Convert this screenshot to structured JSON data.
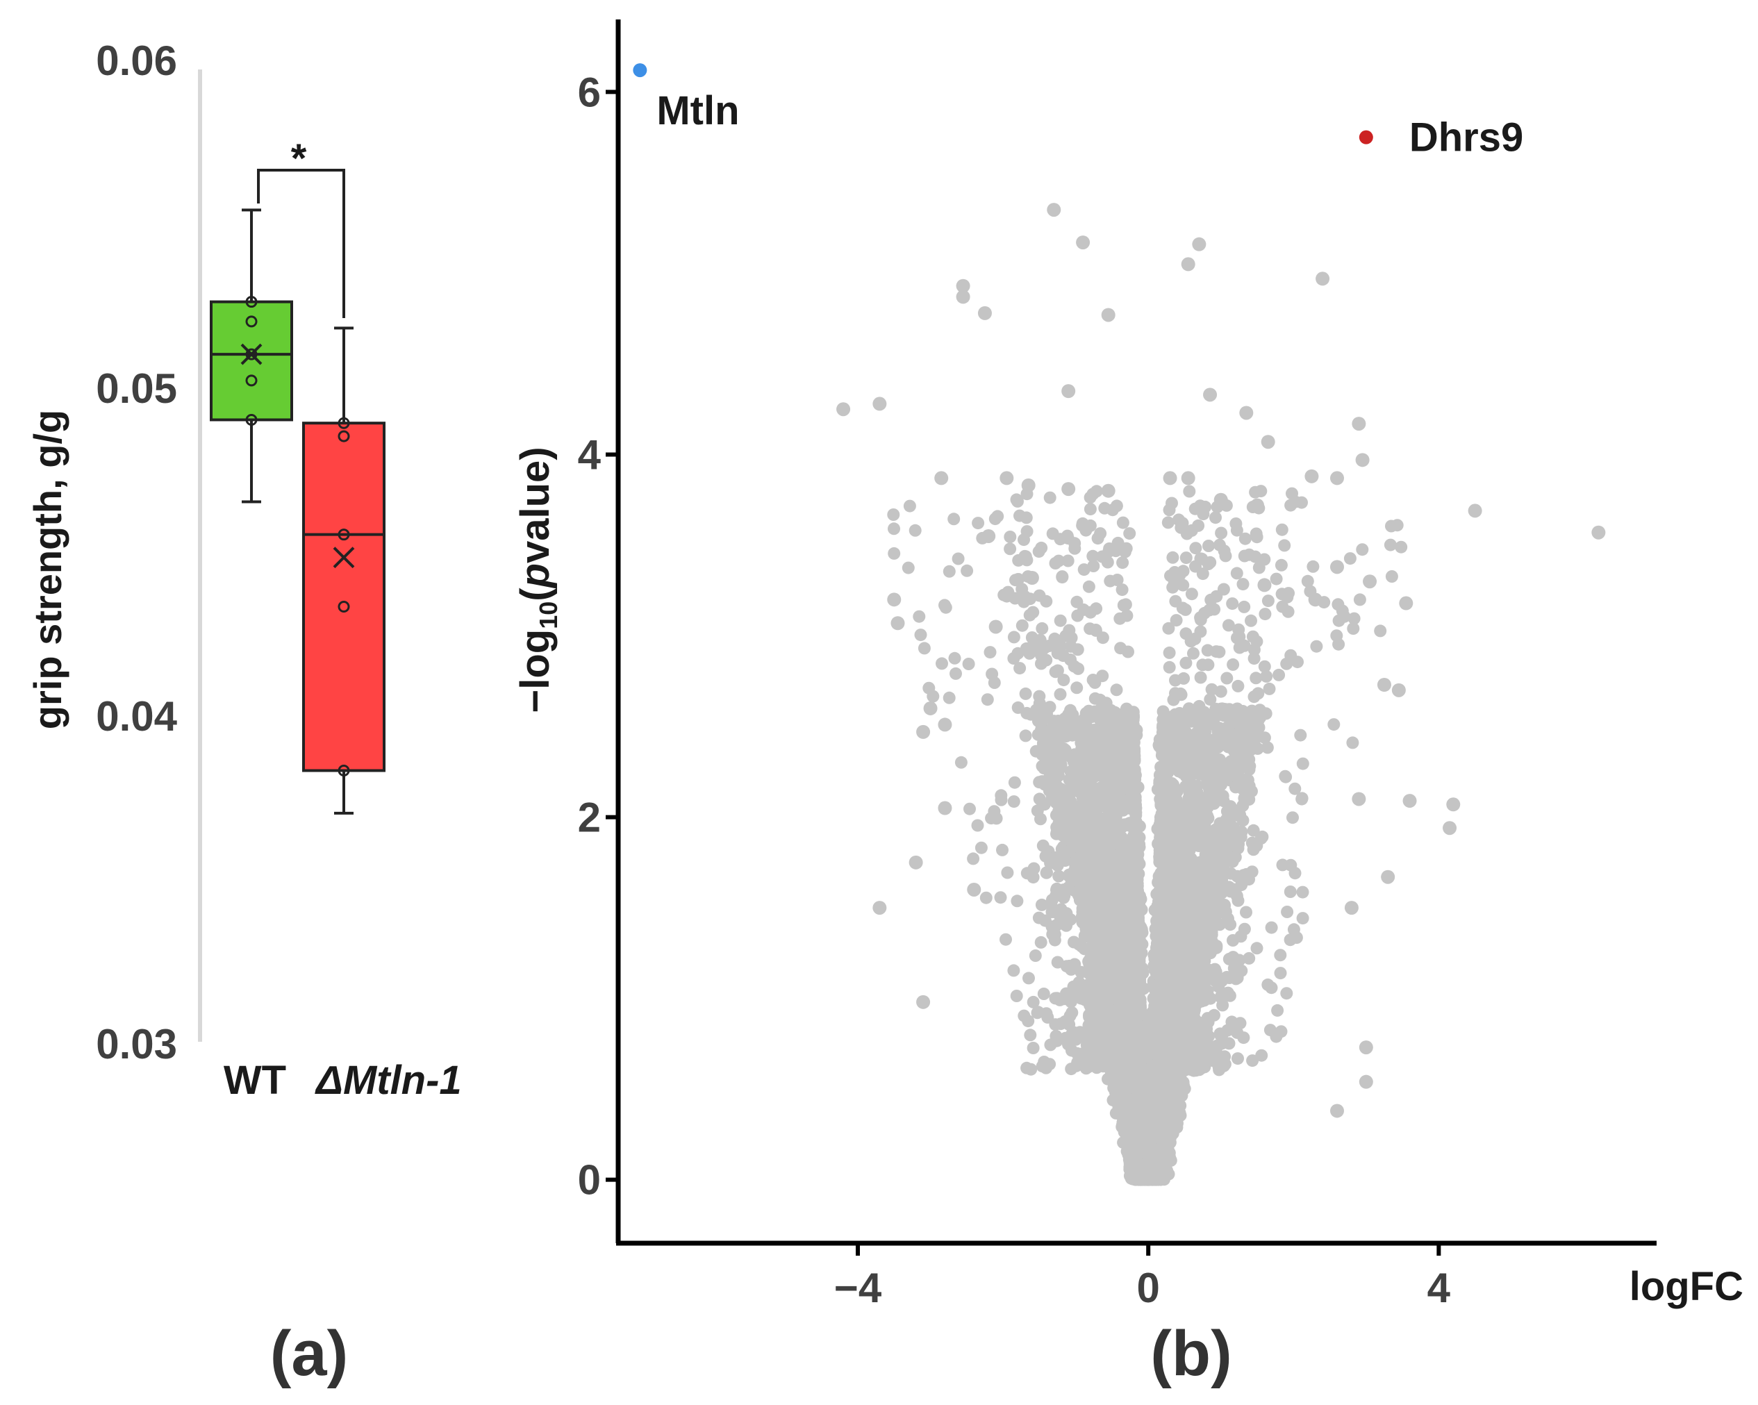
{
  "chart_data": [
    {
      "type": "box",
      "panel_label": "(a)",
      "ylabel": "grip strength, g/g",
      "ylim": [
        0.03,
        0.06
      ],
      "yticks": [
        "0.06",
        "0.05",
        "0.04",
        "0.03"
      ],
      "ytick_values": [
        0.06,
        0.05,
        0.04,
        0.03
      ],
      "categories": [
        "WT",
        "ΔMtln-1"
      ],
      "significance": "*",
      "boxes": [
        {
          "name": "WT",
          "whisker_low": 0.0466,
          "q1": 0.0491,
          "median": 0.0511,
          "q3": 0.0527,
          "whisker_high": 0.0555,
          "mean": 0.0511,
          "points": [
            0.0527,
            0.0521,
            0.0511,
            0.0503,
            0.0491
          ],
          "color": "#66cc33"
        },
        {
          "name": "ΔMtln-1",
          "whisker_low": 0.0371,
          "q1": 0.0384,
          "median": 0.0456,
          "q3": 0.049,
          "whisker_high": 0.0519,
          "mean": 0.0449,
          "points": [
            0.049,
            0.0486,
            0.0456,
            0.0434,
            0.0384
          ],
          "color": "#ff4444"
        }
      ]
    },
    {
      "type": "scatter",
      "panel_label": "(b)",
      "xlabel": "logFC",
      "ylabel_prefix": "−log",
      "ylabel_sub": "10",
      "ylabel_open": "(",
      "ylabel_italic": "p",
      "ylabel_rest": "value)",
      "xlim": [
        -7.3,
        7.0
      ],
      "ylim": [
        -0.35,
        6.4
      ],
      "xticks": [
        "−4",
        "0",
        "4"
      ],
      "xtick_values": [
        -4,
        0,
        4
      ],
      "yticks": [
        "0",
        "2",
        "4",
        "6"
      ],
      "ytick_values": [
        0,
        2,
        4,
        6
      ],
      "background_color": "#c4c4c4",
      "highlighted": [
        {
          "label": "Mtln",
          "x": -7.0,
          "y": 6.12,
          "color": "#3d8fe6"
        },
        {
          "label": "Dhrs9",
          "x": 3.0,
          "y": 5.75,
          "color": "#cc2222"
        }
      ],
      "outliers": [
        [
          -1.3,
          5.35
        ],
        [
          -0.9,
          5.17
        ],
        [
          0.7,
          5.16
        ],
        [
          0.55,
          5.05
        ],
        [
          2.4,
          4.97
        ],
        [
          -2.55,
          4.93
        ],
        [
          -2.55,
          4.87
        ],
        [
          -2.25,
          4.78
        ],
        [
          -0.55,
          4.77
        ],
        [
          -4.2,
          4.25
        ],
        [
          -3.7,
          4.28
        ],
        [
          -1.1,
          4.35
        ],
        [
          0.85,
          4.33
        ],
        [
          1.35,
          4.23
        ],
        [
          2.9,
          4.17
        ],
        [
          1.65,
          4.07
        ],
        [
          2.95,
          3.97
        ],
        [
          2.6,
          3.87
        ],
        [
          2.25,
          3.88
        ],
        [
          -2.85,
          3.87
        ],
        [
          -1.95,
          3.87
        ],
        [
          -1.65,
          3.83
        ],
        [
          -1.1,
          3.81
        ],
        [
          -0.55,
          3.8
        ],
        [
          0.3,
          3.87
        ],
        [
          0.55,
          3.87
        ],
        [
          4.5,
          3.69
        ],
        [
          6.2,
          3.57
        ],
        [
          -3.5,
          3.2
        ],
        [
          -3.45,
          3.07
        ],
        [
          3.55,
          3.18
        ],
        [
          3.05,
          3.3
        ],
        [
          2.6,
          3.38
        ],
        [
          -3.0,
          2.6
        ],
        [
          -2.8,
          2.51
        ],
        [
          -3.1,
          2.47
        ],
        [
          3.45,
          2.7
        ],
        [
          3.25,
          2.73
        ],
        [
          -3.2,
          1.75
        ],
        [
          -3.7,
          1.5
        ],
        [
          -3.1,
          0.98
        ],
        [
          4.2,
          2.07
        ],
        [
          4.15,
          1.94
        ],
        [
          3.6,
          2.09
        ],
        [
          3.3,
          1.67
        ],
        [
          3.0,
          0.73
        ],
        [
          3.0,
          0.54
        ],
        [
          2.6,
          0.38
        ],
        [
          1.0,
          3.75
        ],
        [
          1.5,
          3.72
        ],
        [
          -2.2,
          3.55
        ],
        [
          -1.6,
          3.32
        ],
        [
          1.6,
          3.28
        ],
        [
          -2.1,
          3.05
        ],
        [
          2.3,
          3.2
        ],
        [
          -2.8,
          2.05
        ],
        [
          2.9,
          2.1
        ],
        [
          -2.4,
          1.6
        ],
        [
          2.8,
          1.5
        ]
      ]
    }
  ]
}
